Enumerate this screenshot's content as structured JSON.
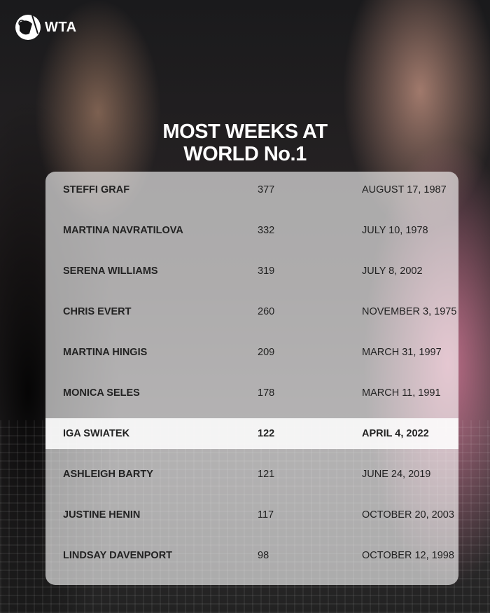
{
  "brand": {
    "logo_text": "WTA"
  },
  "title": {
    "line1": "MOST WEEKS AT",
    "line2": "WORLD No.1"
  },
  "rows": [
    {
      "name": "STEFFI GRAF",
      "weeks": "377",
      "date": "AUGUST 17, 1987"
    },
    {
      "name": "MARTINA NAVRATILOVA",
      "weeks": "332",
      "date": "JULY 10, 1978"
    },
    {
      "name": "SERENA WILLIAMS",
      "weeks": "319",
      "date": "JULY 8, 2002"
    },
    {
      "name": "CHRIS EVERT",
      "weeks": "260",
      "date": "NOVEMBER 3, 1975"
    },
    {
      "name": "MARTINA HINGIS",
      "weeks": "209",
      "date": "MARCH 31, 1997"
    },
    {
      "name": "MONICA SELES",
      "weeks": "178",
      "date": "MARCH 11, 1991"
    },
    {
      "name": "IGA SWIATEK",
      "weeks": "122",
      "date": "APRIL 4, 2022",
      "highlighted": true
    },
    {
      "name": "ASHLEIGH BARTY",
      "weeks": "121",
      "date": "JUNE 24, 2019"
    },
    {
      "name": "JUSTINE HENIN",
      "weeks": "117",
      "date": "OCTOBER 20, 2003"
    },
    {
      "name": "LINDSAY DAVENPORT",
      "weeks": "98",
      "date": "OCTOBER 12, 1998"
    }
  ]
}
